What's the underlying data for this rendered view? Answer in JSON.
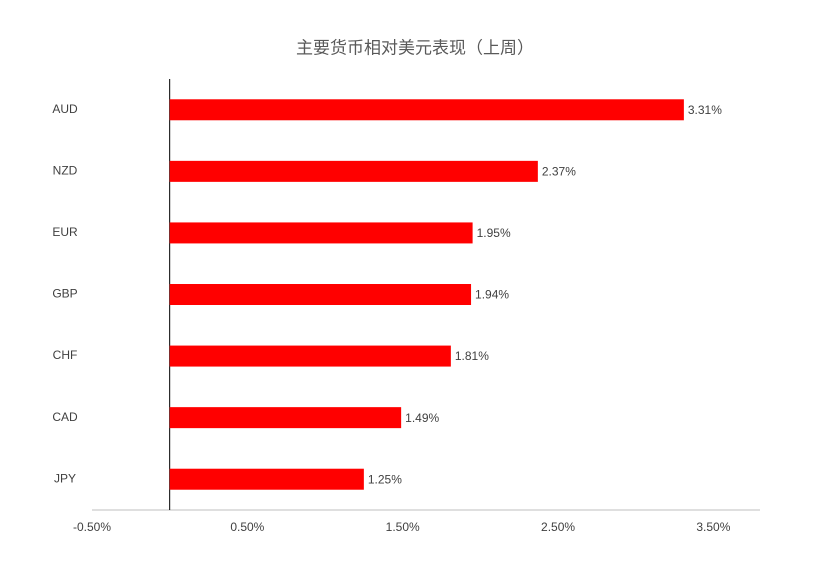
{
  "chart_data": {
    "type": "hbar",
    "title": "主要货币相对美元表现（上周）",
    "categories": [
      "AUD",
      "NZD",
      "EUR",
      "GBP",
      "CHF",
      "CAD",
      "JPY"
    ],
    "values": [
      3.31,
      2.37,
      1.95,
      1.94,
      1.81,
      1.49,
      1.25
    ],
    "value_labels": [
      "3.31%",
      "2.37%",
      "1.95%",
      "1.94%",
      "1.81%",
      "1.49%",
      "1.25%"
    ],
    "color": "#ff0000",
    "xlim": [
      -0.5,
      3.8
    ],
    "xticks": [
      {
        "value": -0.5,
        "label": "-0.50%"
      },
      {
        "value": 0.5,
        "label": "0.50%"
      },
      {
        "value": 1.5,
        "label": "1.50%"
      },
      {
        "value": 2.5,
        "label": "2.50%"
      },
      {
        "value": 3.5,
        "label": "3.50%"
      }
    ]
  }
}
